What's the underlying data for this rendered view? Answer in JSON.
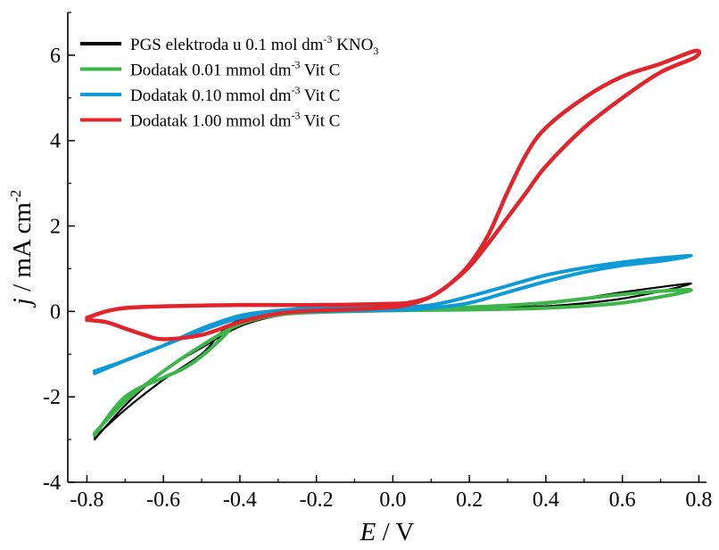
{
  "chart_data": {
    "type": "line",
    "xlabel": {
      "italic": "E",
      "rest": " / V"
    },
    "ylabel": {
      "italic": "j",
      "rest": " / mA cm",
      "sup": "-2"
    },
    "xlim": [
      -0.85,
      0.82
    ],
    "ylim": [
      -4,
      7
    ],
    "xticks": [
      -0.8,
      -0.6,
      -0.4,
      -0.2,
      0.0,
      0.2,
      0.4,
      0.6,
      0.8
    ],
    "xtick_labels": [
      "-0.8",
      "-0.6",
      "-0.4",
      "-0.2",
      "0.0",
      "0.2",
      "0.4",
      "0.6",
      "0.8"
    ],
    "yticks": [
      -4,
      -2,
      0,
      2,
      4,
      6
    ],
    "ytick_labels": [
      "-4",
      "-2",
      "0",
      "2",
      "4",
      "6"
    ],
    "legend_position": "top-left",
    "series": [
      {
        "name": "PGS elektroda u 0.1 mol dm-3 KNO3",
        "legend": {
          "main": "PGS elektroda u 0.1 mol dm",
          "sup": "-3",
          "mid": " KNO",
          "sub": "3",
          "end": ""
        },
        "color": "#000000",
        "x": [
          -0.78,
          -0.7,
          -0.6,
          -0.5,
          -0.4,
          -0.3,
          -0.2,
          0.0,
          0.2,
          0.4,
          0.6,
          0.78,
          0.6,
          0.4,
          0.2,
          0.0,
          -0.2,
          -0.3,
          -0.4,
          -0.45,
          -0.5,
          -0.6,
          -0.7,
          -0.78
        ],
        "y": [
          -3.0,
          -2.2,
          -1.4,
          -0.85,
          -0.35,
          -0.1,
          -0.02,
          0.02,
          0.08,
          0.18,
          0.45,
          0.65,
          0.3,
          0.12,
          0.06,
          0.05,
          0.02,
          -0.05,
          -0.2,
          -0.5,
          -1.0,
          -1.6,
          -2.3,
          -2.95
        ]
      },
      {
        "name": "Dodatak 0.01 mmol dm-3 Vit C",
        "legend": {
          "main": "Dodatak  0.01 mmol dm",
          "sup": "-3",
          "mid": " Vit C",
          "sub": "",
          "end": ""
        },
        "color": "#3db54a",
        "x": [
          -0.78,
          -0.7,
          -0.6,
          -0.55,
          -0.5,
          -0.45,
          -0.4,
          -0.3,
          -0.2,
          0.0,
          0.2,
          0.4,
          0.6,
          0.78,
          0.6,
          0.4,
          0.2,
          0.0,
          -0.2,
          -0.3,
          -0.4,
          -0.5,
          -0.6,
          -0.7,
          -0.78
        ],
        "y": [
          -2.9,
          -2.0,
          -1.55,
          -1.35,
          -1.05,
          -0.65,
          -0.25,
          -0.08,
          -0.02,
          0.02,
          0.04,
          0.08,
          0.2,
          0.5,
          0.4,
          0.2,
          0.1,
          0.06,
          0.02,
          -0.08,
          -0.3,
          -0.8,
          -1.4,
          -2.1,
          -2.85
        ]
      },
      {
        "name": "Dodatak 0.10 mmol dm-3 Vit C",
        "legend": {
          "main": "Dodatak 0.10 mmol dm",
          "sup": "-3",
          "mid": " Vit C",
          "sub": "",
          "end": ""
        },
        "color": "#0e9ad7",
        "x": [
          -0.78,
          -0.7,
          -0.6,
          -0.5,
          -0.4,
          -0.3,
          -0.2,
          0.0,
          0.1,
          0.2,
          0.3,
          0.4,
          0.5,
          0.6,
          0.7,
          0.78,
          0.7,
          0.6,
          0.5,
          0.4,
          0.3,
          0.2,
          0.1,
          0.0,
          -0.2,
          -0.3,
          -0.4,
          -0.5,
          -0.6,
          -0.7,
          -0.78
        ],
        "y": [
          -1.45,
          -1.15,
          -0.8,
          -0.45,
          -0.15,
          -0.03,
          0.0,
          0.03,
          0.08,
          0.2,
          0.45,
          0.7,
          0.92,
          1.08,
          1.18,
          1.3,
          1.25,
          1.15,
          1.02,
          0.85,
          0.6,
          0.35,
          0.15,
          0.1,
          0.08,
          0.02,
          -0.1,
          -0.4,
          -0.8,
          -1.15,
          -1.4
        ]
      },
      {
        "name": "Dodatak 1.00 mmol dm-3 Vit C",
        "legend": {
          "main": "Dodatak 1.00 mmol dm",
          "sup": "-3",
          "mid": " Vit C",
          "sub": "",
          "end": ""
        },
        "color": "#e0252c",
        "x": [
          -0.8,
          -0.75,
          -0.7,
          -0.65,
          -0.6,
          -0.5,
          -0.4,
          -0.3,
          -0.2,
          -0.1,
          0.0,
          0.05,
          0.1,
          0.15,
          0.2,
          0.25,
          0.3,
          0.35,
          0.4,
          0.5,
          0.6,
          0.7,
          0.79,
          0.79,
          0.7,
          0.6,
          0.5,
          0.4,
          0.35,
          0.3,
          0.25,
          0.2,
          0.15,
          0.1,
          0.05,
          0.0,
          -0.2,
          -0.4,
          -0.6,
          -0.7,
          -0.75,
          -0.8
        ],
        "y": [
          -0.2,
          -0.25,
          -0.4,
          -0.55,
          -0.65,
          -0.55,
          -0.25,
          -0.05,
          0.02,
          0.05,
          0.1,
          0.18,
          0.35,
          0.65,
          1.1,
          1.8,
          2.8,
          3.7,
          4.3,
          5.0,
          5.5,
          5.8,
          6.1,
          5.95,
          5.6,
          5.0,
          4.3,
          3.4,
          2.8,
          2.2,
          1.6,
          1.05,
          0.65,
          0.35,
          0.22,
          0.18,
          0.15,
          0.15,
          0.12,
          0.08,
          0.0,
          -0.15
        ]
      }
    ]
  }
}
